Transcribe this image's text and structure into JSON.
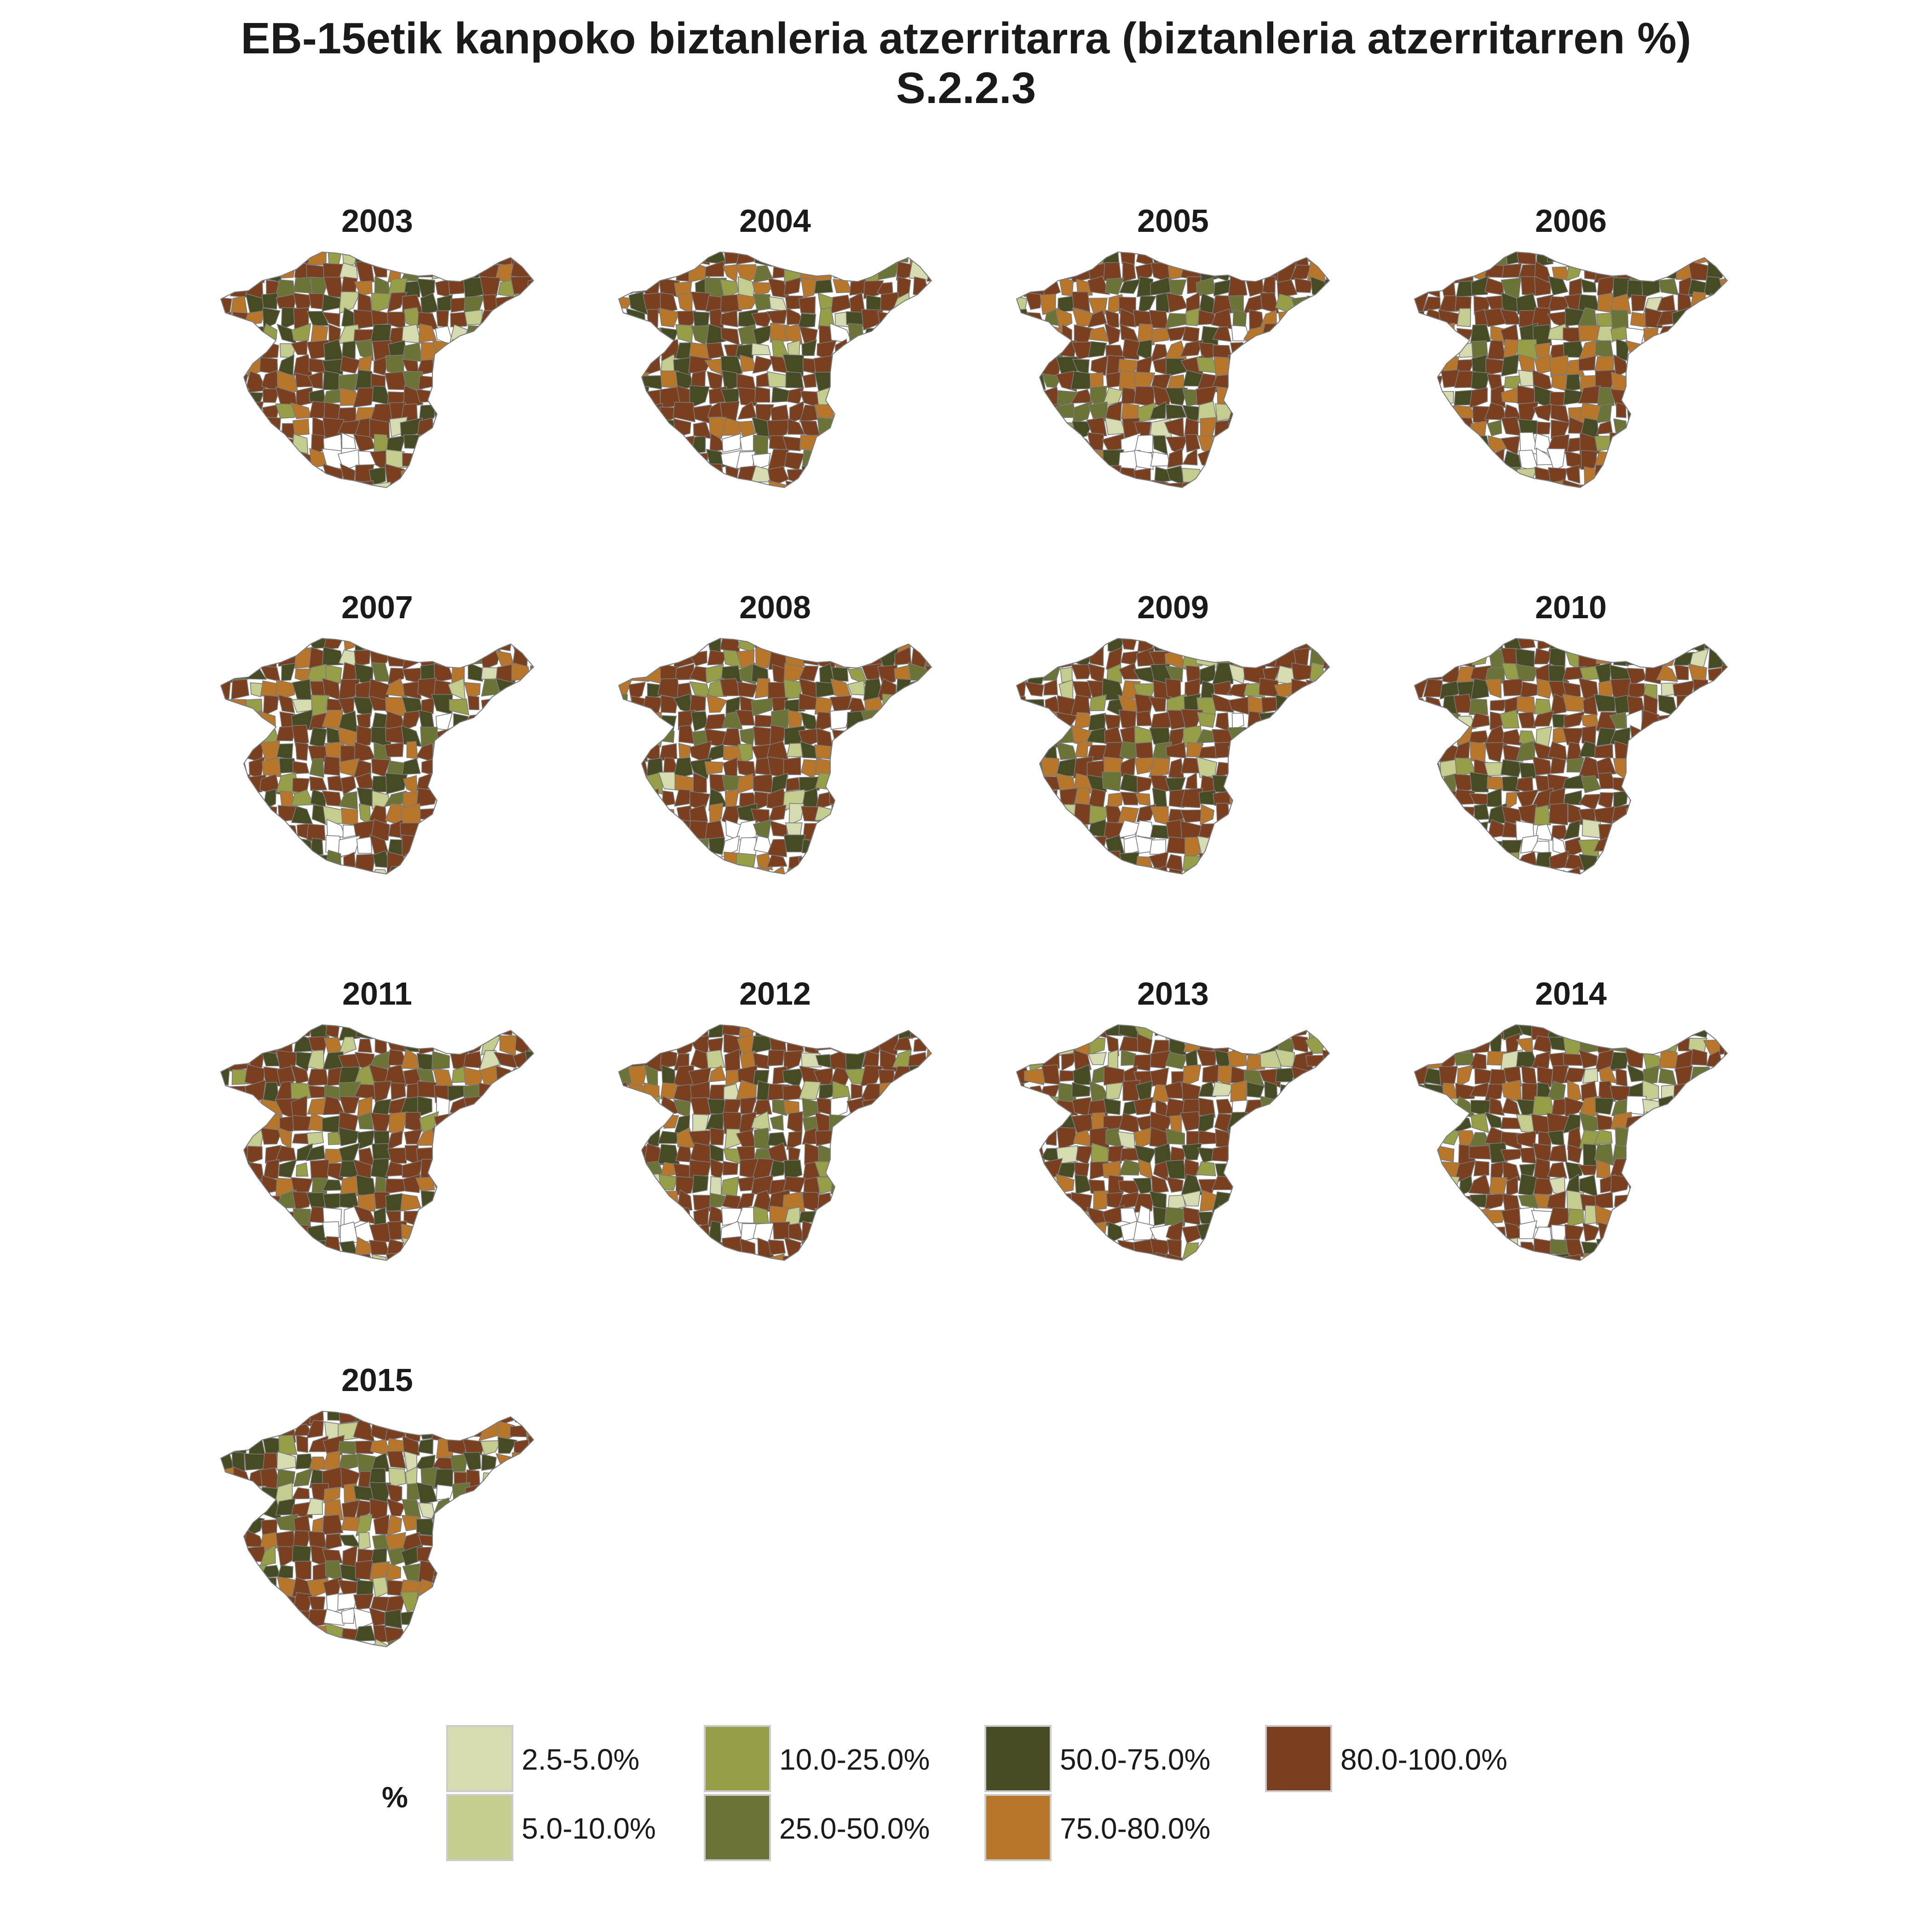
{
  "title": {
    "line1": "EB-15etik kanpoko biztanleria atzerritarra (biztanleria atzerritarren %)",
    "line2": "S.2.2.3"
  },
  "colors": {
    "c1": "#d6dbb0",
    "c2": "#c4cc8e",
    "c3": "#969f47",
    "c4": "#6b7336",
    "c5": "#464b24",
    "c6": "#b8762a",
    "c7": "#7a3f1e",
    "border": "#7a7a7a",
    "missing": "#ffffff"
  },
  "panels": [
    {
      "year": "2003"
    },
    {
      "year": "2004"
    },
    {
      "year": "2005"
    },
    {
      "year": "2006"
    },
    {
      "year": "2007"
    },
    {
      "year": "2008"
    },
    {
      "year": "2009"
    },
    {
      "year": "2010"
    },
    {
      "year": "2011"
    },
    {
      "year": "2012"
    },
    {
      "year": "2013"
    },
    {
      "year": "2014"
    },
    {
      "year": "2015"
    }
  ],
  "legend": {
    "title": "%",
    "items": [
      {
        "label": "2.5-5.0%",
        "color": "#d6dbb0"
      },
      {
        "label": "5.0-10.0%",
        "color": "#c4cc8e"
      },
      {
        "label": "10.0-25.0%",
        "color": "#969f47"
      },
      {
        "label": "25.0-50.0%",
        "color": "#6b7336"
      },
      {
        "label": "50.0-75.0%",
        "color": "#464b24"
      },
      {
        "label": "75.0-80.0%",
        "color": "#b8762a"
      },
      {
        "label": "80.0-100.0%",
        "color": "#7a3f1e"
      }
    ]
  }
}
